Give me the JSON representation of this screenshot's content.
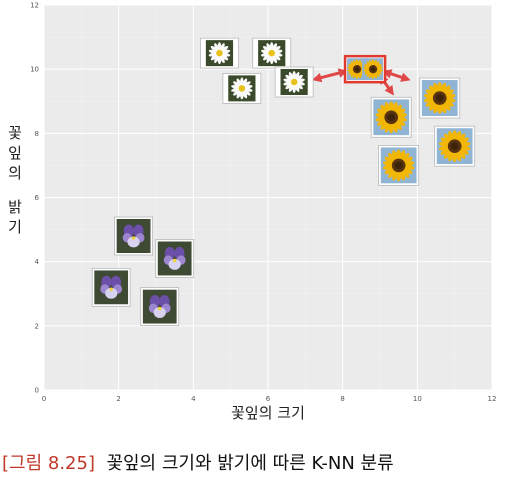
{
  "chart_data": {
    "type": "scatter",
    "xlabel": "꽃잎의 크기",
    "ylabel": "꽃잎의 밝기",
    "xlim": [
      0,
      12
    ],
    "ylim": [
      0,
      12
    ],
    "x_ticks": [
      0,
      2,
      4,
      6,
      8,
      10,
      12
    ],
    "y_ticks": [
      0,
      2,
      4,
      6,
      8,
      10,
      12
    ],
    "grid": true,
    "series": [
      {
        "kind": "daisy",
        "points": [
          {
            "x": 4.7,
            "y": 10.5
          },
          {
            "x": 6.1,
            "y": 10.5
          },
          {
            "x": 5.3,
            "y": 9.4
          },
          {
            "x": 6.7,
            "y": 9.6
          }
        ]
      },
      {
        "kind": "sunflower",
        "points": [
          {
            "x": 10.6,
            "y": 9.1
          },
          {
            "x": 9.3,
            "y": 8.5
          },
          {
            "x": 11.0,
            "y": 7.6
          },
          {
            "x": 9.5,
            "y": 7.0
          }
        ]
      },
      {
        "kind": "violet",
        "points": [
          {
            "x": 2.4,
            "y": 4.8
          },
          {
            "x": 3.5,
            "y": 4.1
          },
          {
            "x": 1.8,
            "y": 3.2
          },
          {
            "x": 3.1,
            "y": 2.6
          }
        ]
      }
    ],
    "query_point": {
      "x": 8.6,
      "y": 10.0,
      "highlight_color": "#e03a2f"
    },
    "arrows_to": [
      {
        "x": 7.3,
        "y": 9.7
      },
      {
        "x": 9.7,
        "y": 9.7
      },
      {
        "x": 9.3,
        "y": 9.3
      }
    ],
    "arrow_color": "#e04848"
  },
  "caption": {
    "figure_label": "그림 8.25",
    "text": "꽃잎의 크기와 밝기에 따른 K-NN 분류"
  }
}
